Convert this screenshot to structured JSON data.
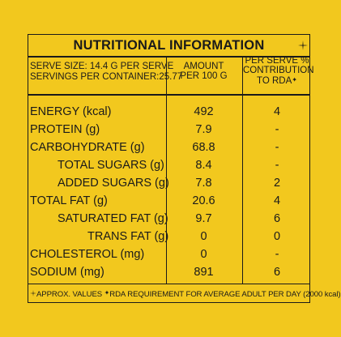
{
  "title": "NUTRITIONAL INFORMATION",
  "serve_size": "SERVE SIZE: 14.4 g PER SERVE",
  "servings_per_container": "SERVINGS PER CONTAINER:25.77",
  "col_amount": "AMOUNT PER 100 g",
  "col_amount_line1": "AMOUNT",
  "col_amount_line2": "PER 100 g",
  "col_rda_line1": "PER SERVE %",
  "col_rda_line2": "CONTRIBUTION",
  "col_rda_line3": "TO RDA",
  "rows": [
    {
      "label": "ENERGY (kcal)",
      "amount": "492",
      "rda": "4"
    },
    {
      "label": "PROTEIN (g)",
      "amount": "7.9",
      "rda": "-"
    },
    {
      "label": "CARBOHYDRATE (g)",
      "amount": "68.8",
      "rda": "-"
    },
    {
      "label": "TOTAL SUGARS (g)",
      "amount": "8.4",
      "rda": "-"
    },
    {
      "label": "ADDED SUGARS (g)",
      "amount": "7.8",
      "rda": "2"
    },
    {
      "label": "TOTAL FAT (g)",
      "amount": "20.6",
      "rda": "4"
    },
    {
      "label": "SATURATED FAT (g)",
      "amount": "9.7",
      "rda": "6"
    },
    {
      "label": "TRANS FAT (g)",
      "amount": "0",
      "rda": "0"
    },
    {
      "label": "CHOLESTEROL (mg)",
      "amount": "0",
      "rda": "-"
    },
    {
      "label": "SODIUM (mg)",
      "amount": "891",
      "rda": "6"
    }
  ],
  "footnote_approx": "APPROX. VALUES",
  "footnote_rda": "RDA REQUIREMENT FOR AVERAGE ADULT PER DAY (2000 kcal)",
  "colors": {
    "background": "#f2c81e",
    "ink": "#1a1a1a"
  }
}
